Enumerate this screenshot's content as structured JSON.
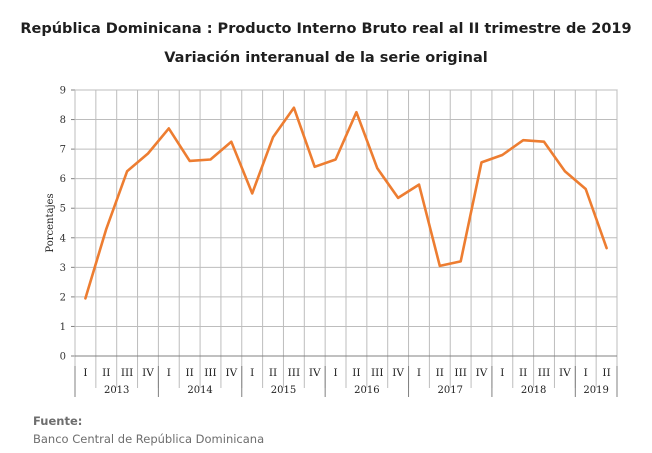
{
  "chart_data": {
    "type": "line",
    "title": "República Dominicana : Producto Interno Bruto real al II trimestre de 2019",
    "subtitle": "Variación interanual de la serie original",
    "ylabel": "Porcentajes",
    "xlabel": "",
    "ylim": [
      0,
      9
    ],
    "yticks": [
      "0",
      "1",
      "2",
      "3",
      "4",
      "5",
      "6",
      "7",
      "8",
      "9"
    ],
    "grid": true,
    "legend": "none",
    "line_color": "#ED7D31",
    "quarters": [
      "I",
      "II",
      "III",
      "IV",
      "I",
      "II",
      "III",
      "IV",
      "I",
      "II",
      "III",
      "IV",
      "I",
      "II",
      "III",
      "IV",
      "I",
      "II",
      "III",
      "IV",
      "I",
      "II",
      "III",
      "IV",
      "I",
      "II"
    ],
    "years": [
      {
        "label": "2013",
        "count": 4
      },
      {
        "label": "2014",
        "count": 4
      },
      {
        "label": "2015",
        "count": 4
      },
      {
        "label": "2016",
        "count": 4
      },
      {
        "label": "2017",
        "count": 4
      },
      {
        "label": "2018",
        "count": 4
      },
      {
        "label": "2019",
        "count": 2
      }
    ],
    "values": [
      1.95,
      4.3,
      6.25,
      6.85,
      7.7,
      6.6,
      6.65,
      7.25,
      5.5,
      7.4,
      8.4,
      6.4,
      6.65,
      8.25,
      6.35,
      5.35,
      5.8,
      3.05,
      3.2,
      6.55,
      6.8,
      7.3,
      7.25,
      6.25,
      5.65,
      3.65
    ]
  },
  "footer": {
    "source_label": "Fuente:",
    "source_text": "Banco Central de República Dominicana"
  }
}
